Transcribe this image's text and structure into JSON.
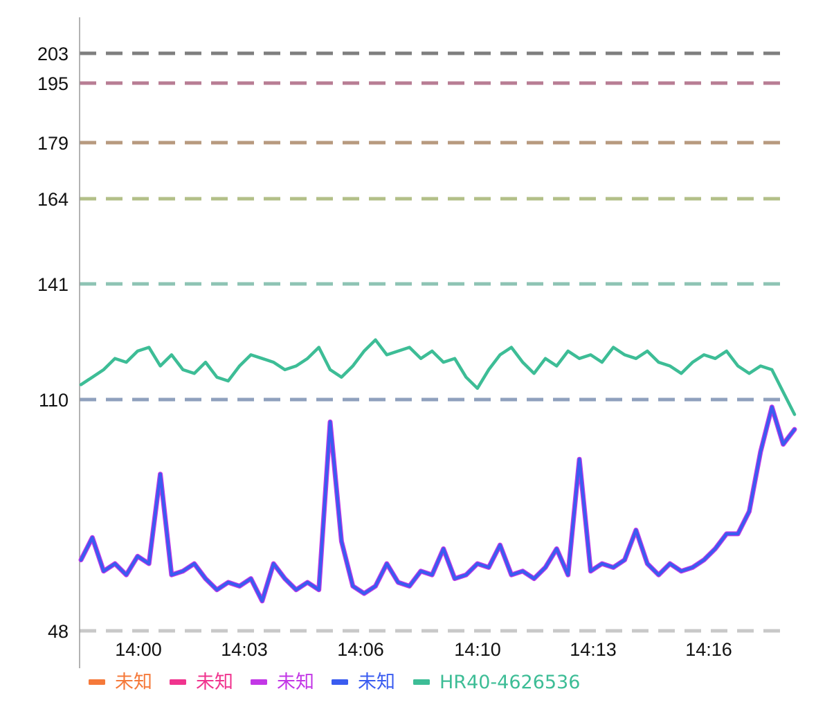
{
  "chart_data": {
    "type": "line",
    "title": "",
    "xlabel": "",
    "ylabel": "",
    "x_range_minutes": [
      13.983,
      14.303
    ],
    "x_ticks": [
      "14:00",
      "14:03",
      "14:06",
      "14:10",
      "14:13",
      "14:16"
    ],
    "y_ticks": [
      48,
      110,
      141,
      164,
      179,
      195,
      203
    ],
    "ylim": [
      43,
      213
    ],
    "grid": false,
    "legend_position": "bottom-left",
    "zone_lines": [
      {
        "value": 203,
        "color": "#7f7f7f"
      },
      {
        "value": 195,
        "color": "#b87d94"
      },
      {
        "value": 179,
        "color": "#b79a7f"
      },
      {
        "value": 164,
        "color": "#b3bf88"
      },
      {
        "value": 141,
        "color": "#8ec4b4"
      },
      {
        "value": 110,
        "color": "#8fa0bd"
      },
      {
        "value": 48,
        "color": "#c8c8c8"
      }
    ],
    "legend": [
      {
        "name": "未知",
        "color": "#f5793a"
      },
      {
        "name": "未知",
        "color": "#f0348e"
      },
      {
        "name": "未知",
        "color": "#c237e6"
      },
      {
        "name": "未知",
        "color": "#3a5cf0"
      },
      {
        "name": "HR40-4626536",
        "color": "#3dbd96"
      }
    ],
    "series": [
      {
        "name": "HR40-4626536",
        "color": "#3dbd96",
        "x": [
          "13:59",
          "13:59",
          "13:59",
          "13:59",
          "14:00",
          "14:00",
          "14:00",
          "14:00",
          "14:01",
          "14:01",
          "14:01",
          "14:01",
          "14:02",
          "14:02",
          "14:02",
          "14:03",
          "14:03",
          "14:03",
          "14:04",
          "14:04",
          "14:04",
          "14:04",
          "14:05",
          "14:05",
          "14:05",
          "14:06",
          "14:06",
          "14:06",
          "14:07",
          "14:07",
          "14:07",
          "14:08",
          "14:08",
          "14:08",
          "14:09",
          "14:09",
          "14:09",
          "14:10",
          "14:10",
          "14:10",
          "14:11",
          "14:11",
          "14:11",
          "14:12",
          "14:12",
          "14:12",
          "14:13",
          "14:13",
          "14:13",
          "14:14",
          "14:14",
          "14:14",
          "14:15",
          "14:15",
          "14:15",
          "14:16",
          "14:16",
          "14:16",
          "14:17",
          "14:17",
          "14:17",
          "14:18",
          "14:18",
          "14:18"
        ],
        "y": [
          114,
          116,
          118,
          121,
          120,
          123,
          124,
          119,
          122,
          118,
          117,
          120,
          116,
          115,
          119,
          122,
          121,
          120,
          118,
          119,
          121,
          124,
          118,
          116,
          119,
          123,
          126,
          122,
          123,
          124,
          121,
          123,
          120,
          121,
          116,
          113,
          118,
          122,
          124,
          120,
          117,
          121,
          119,
          123,
          121,
          122,
          120,
          124,
          122,
          121,
          123,
          120,
          119,
          117,
          120,
          122,
          121,
          123,
          119,
          117,
          119,
          118,
          112,
          106
        ]
      },
      {
        "name": "未知",
        "color": "#3a5cf0",
        "x": [
          "13:59",
          "13:59",
          "13:59",
          "13:59",
          "14:00",
          "14:00",
          "14:00",
          "14:00",
          "14:01",
          "14:01",
          "14:01",
          "14:01",
          "14:02",
          "14:02",
          "14:02",
          "14:03",
          "14:03",
          "14:03",
          "14:04",
          "14:04",
          "14:04",
          "14:04",
          "14:05",
          "14:05",
          "14:05",
          "14:06",
          "14:06",
          "14:06",
          "14:07",
          "14:07",
          "14:07",
          "14:08",
          "14:08",
          "14:08",
          "14:09",
          "14:09",
          "14:09",
          "14:10",
          "14:10",
          "14:10",
          "14:11",
          "14:11",
          "14:11",
          "14:12",
          "14:12",
          "14:12",
          "14:13",
          "14:13",
          "14:13",
          "14:14",
          "14:14",
          "14:14",
          "14:15",
          "14:15",
          "14:15",
          "14:16",
          "14:16",
          "14:16",
          "14:17",
          "14:17",
          "14:17",
          "14:18",
          "14:18",
          "14:18"
        ],
        "y": [
          67,
          73,
          64,
          66,
          63,
          68,
          66,
          90,
          63,
          64,
          66,
          62,
          59,
          61,
          60,
          62,
          56,
          66,
          62,
          59,
          61,
          59,
          104,
          72,
          60,
          58,
          60,
          66,
          61,
          60,
          64,
          63,
          70,
          62,
          63,
          66,
          65,
          71,
          63,
          64,
          62,
          65,
          70,
          63,
          94,
          64,
          66,
          65,
          67,
          75,
          66,
          63,
          66,
          64,
          65,
          67,
          70,
          74,
          74,
          80,
          96,
          108,
          98,
          102
        ]
      }
    ]
  }
}
